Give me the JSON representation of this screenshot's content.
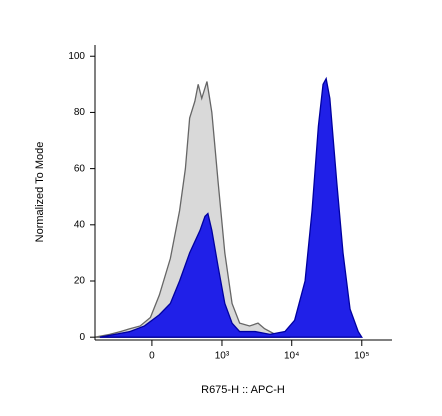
{
  "chart_data": {
    "type": "area",
    "x_label": "R675-H :: APC-H",
    "y_label": "Normalized To Mode",
    "xscale": "biexponential",
    "xlim": [
      -640,
      270000
    ],
    "xticks": [
      0,
      {
        "value": 1000,
        "label": "10³"
      },
      {
        "value": 10000,
        "label": "10⁴"
      },
      {
        "value": 100000,
        "label": "10⁵"
      }
    ],
    "ylim": [
      -1,
      104
    ],
    "yticks": [
      0,
      20,
      40,
      60,
      80,
      100
    ],
    "series": [
      {
        "color": "#d9d9d9",
        "edge": "#666666",
        "x": [
          -640,
          -380,
          -250,
          -160,
          -80,
          -10,
          50,
          130,
          210,
          270,
          320,
          390,
          440,
          500,
          600,
          710,
          880,
          1100,
          1400,
          1800,
          2500,
          3300,
          4100,
          5800,
          9500
        ],
        "values": [
          0,
          1,
          2,
          3,
          4,
          7,
          15,
          28,
          45,
          60,
          78,
          84,
          90,
          85,
          91,
          80,
          55,
          30,
          12,
          5,
          4,
          5,
          3,
          1,
          0
        ]
      },
      {
        "color": "#2020e8",
        "edge": "#0000a0",
        "x": [
          -540,
          -310,
          -160,
          -50,
          50,
          130,
          210,
          320,
          470,
          560,
          620,
          710,
          880,
          1100,
          1400,
          1800,
          3000,
          4900,
          8000,
          11000,
          15500,
          19500,
          24000,
          28000,
          31000,
          35000,
          44000,
          54000,
          68000,
          89000,
          100000
        ],
        "values": [
          0,
          1,
          2,
          4,
          8,
          12,
          20,
          30,
          38,
          43,
          44,
          38,
          25,
          12,
          5,
          2,
          2,
          1,
          2,
          6,
          20,
          45,
          75,
          90,
          92,
          85,
          55,
          30,
          10,
          2,
          0
        ]
      }
    ]
  }
}
